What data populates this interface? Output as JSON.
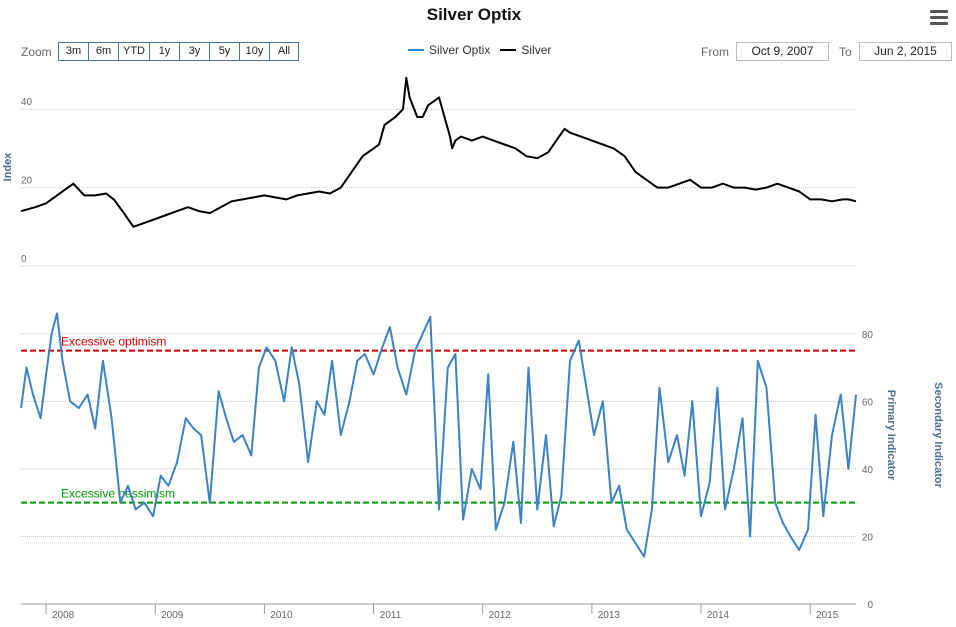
{
  "title": "Silver Optix",
  "menu_icon": "hamburger-menu-icon",
  "zoom": {
    "label": "Zoom",
    "buttons": [
      "3m",
      "6m",
      "YTD",
      "1y",
      "3y",
      "5y",
      "10y",
      "All"
    ]
  },
  "legend": [
    {
      "name": "Silver Optix",
      "color": "#3d82c4"
    },
    {
      "name": "Silver",
      "color": "#000000"
    }
  ],
  "range": {
    "from_label": "From",
    "from_value": "Oct 9, 2007",
    "to_label": "To",
    "to_value": "Jun 2, 2015"
  },
  "chart_data": [
    {
      "type": "line",
      "title": "",
      "ylabel": "Index",
      "ylim": [
        0,
        50
      ],
      "yticks": [
        0,
        20,
        40
      ],
      "grid": true,
      "series": [
        {
          "name": "Silver",
          "color": "#000000",
          "x": [
            2007.77,
            2007.9,
            2008.0,
            2008.1,
            2008.2,
            2008.25,
            2008.35,
            2008.45,
            2008.55,
            2008.62,
            2008.7,
            2008.8,
            2008.9,
            2009.0,
            2009.1,
            2009.2,
            2009.3,
            2009.4,
            2009.5,
            2009.6,
            2009.7,
            2009.8,
            2009.9,
            2010.0,
            2010.1,
            2010.2,
            2010.3,
            2010.4,
            2010.5,
            2010.6,
            2010.7,
            2010.8,
            2010.9,
            2011.0,
            2011.05,
            2011.1,
            2011.2,
            2011.27,
            2011.3,
            2011.33,
            2011.4,
            2011.45,
            2011.5,
            2011.55,
            2011.6,
            2011.65,
            2011.7,
            2011.72,
            2011.75,
            2011.8,
            2011.9,
            2012.0,
            2012.1,
            2012.2,
            2012.3,
            2012.4,
            2012.5,
            2012.6,
            2012.7,
            2012.75,
            2012.8,
            2012.9,
            2013.0,
            2013.1,
            2013.2,
            2013.3,
            2013.4,
            2013.5,
            2013.6,
            2013.7,
            2013.8,
            2013.9,
            2014.0,
            2014.1,
            2014.2,
            2014.3,
            2014.4,
            2014.5,
            2014.6,
            2014.7,
            2014.8,
            2014.9,
            2015.0,
            2015.1,
            2015.2,
            2015.3,
            2015.35,
            2015.42
          ],
          "y": [
            14,
            15,
            16,
            18,
            20,
            21,
            18,
            18,
            18.5,
            17,
            14,
            10,
            11,
            12,
            13,
            14,
            15,
            14,
            13.5,
            15,
            16.5,
            17,
            17.5,
            18,
            17.5,
            17,
            18,
            18.5,
            19,
            18.5,
            20,
            24,
            28,
            30,
            31,
            36,
            38,
            40,
            48,
            43,
            38,
            38,
            41,
            42,
            43,
            38,
            33,
            30,
            32,
            33,
            32,
            33,
            32,
            31,
            30,
            28,
            27.5,
            29,
            33,
            35,
            34,
            33,
            32,
            31,
            30,
            28,
            24,
            22,
            20,
            20,
            21,
            22,
            20,
            20,
            21,
            20,
            20,
            19.5,
            20,
            21,
            20,
            19,
            17,
            17,
            16.5,
            17,
            17,
            16.5
          ]
        }
      ]
    },
    {
      "type": "line",
      "title": "",
      "ylabel": "Primary Indicator",
      "secondary_ylabel": "Secondary Indicator",
      "ylim": [
        0,
        90
      ],
      "yticks": [
        0,
        20,
        40,
        60,
        80
      ],
      "xlim": [
        2007.77,
        2015.42
      ],
      "xticks": [
        2008,
        2009,
        2010,
        2011,
        2012,
        2013,
        2014,
        2015
      ],
      "grid": true,
      "reference_lines": [
        {
          "label": "Excessive optimism",
          "value": 75,
          "color": "#cc0000"
        },
        {
          "label": "Excessive pessimism",
          "value": 30,
          "color": "#009900"
        }
      ],
      "series": [
        {
          "name": "Silver Optix",
          "color": "#3d82c4",
          "x": [
            2007.77,
            2007.82,
            2007.88,
            2007.95,
            2008.0,
            2008.05,
            2008.1,
            2008.15,
            2008.22,
            2008.3,
            2008.38,
            2008.45,
            2008.52,
            2008.6,
            2008.68,
            2008.75,
            2008.82,
            2008.9,
            2008.98,
            2009.05,
            2009.12,
            2009.2,
            2009.28,
            2009.35,
            2009.42,
            2009.5,
            2009.58,
            2009.65,
            2009.72,
            2009.8,
            2009.88,
            2009.95,
            2010.02,
            2010.1,
            2010.18,
            2010.25,
            2010.32,
            2010.4,
            2010.48,
            2010.55,
            2010.62,
            2010.7,
            2010.78,
            2010.85,
            2010.92,
            2011.0,
            2011.08,
            2011.15,
            2011.22,
            2011.3,
            2011.38,
            2011.45,
            2011.52,
            2011.6,
            2011.68,
            2011.75,
            2011.82,
            2011.9,
            2011.98,
            2012.05,
            2012.12,
            2012.2,
            2012.28,
            2012.35,
            2012.42,
            2012.5,
            2012.58,
            2012.65,
            2012.72,
            2012.8,
            2012.88,
            2012.95,
            2013.02,
            2013.1,
            2013.18,
            2013.25,
            2013.32,
            2013.4,
            2013.48,
            2013.55,
            2013.62,
            2013.7,
            2013.78,
            2013.85,
            2013.92,
            2014.0,
            2014.08,
            2014.15,
            2014.22,
            2014.3,
            2014.38,
            2014.45,
            2014.52,
            2014.6,
            2014.68,
            2014.75,
            2014.82,
            2014.9,
            2014.98,
            2015.05,
            2015.12,
            2015.2,
            2015.28,
            2015.35,
            2015.42
          ],
          "y": [
            58,
            70,
            62,
            55,
            68,
            80,
            86,
            72,
            60,
            58,
            62,
            52,
            72,
            55,
            30,
            35,
            28,
            30,
            26,
            38,
            35,
            42,
            55,
            52,
            50,
            30,
            63,
            55,
            48,
            50,
            44,
            70,
            76,
            72,
            60,
            76,
            65,
            42,
            60,
            56,
            72,
            50,
            60,
            72,
            74,
            68,
            76,
            82,
            70,
            62,
            75,
            80,
            85,
            28,
            70,
            74,
            25,
            40,
            34,
            68,
            22,
            30,
            48,
            24,
            70,
            28,
            50,
            23,
            32,
            72,
            78,
            64,
            50,
            60,
            30,
            35,
            22,
            18,
            14,
            28,
            64,
            42,
            50,
            38,
            60,
            26,
            36,
            64,
            28,
            40,
            55,
            20,
            72,
            64,
            30,
            24,
            20,
            16,
            22,
            56,
            26,
            50,
            62,
            40,
            62
          ]
        }
      ]
    }
  ]
}
